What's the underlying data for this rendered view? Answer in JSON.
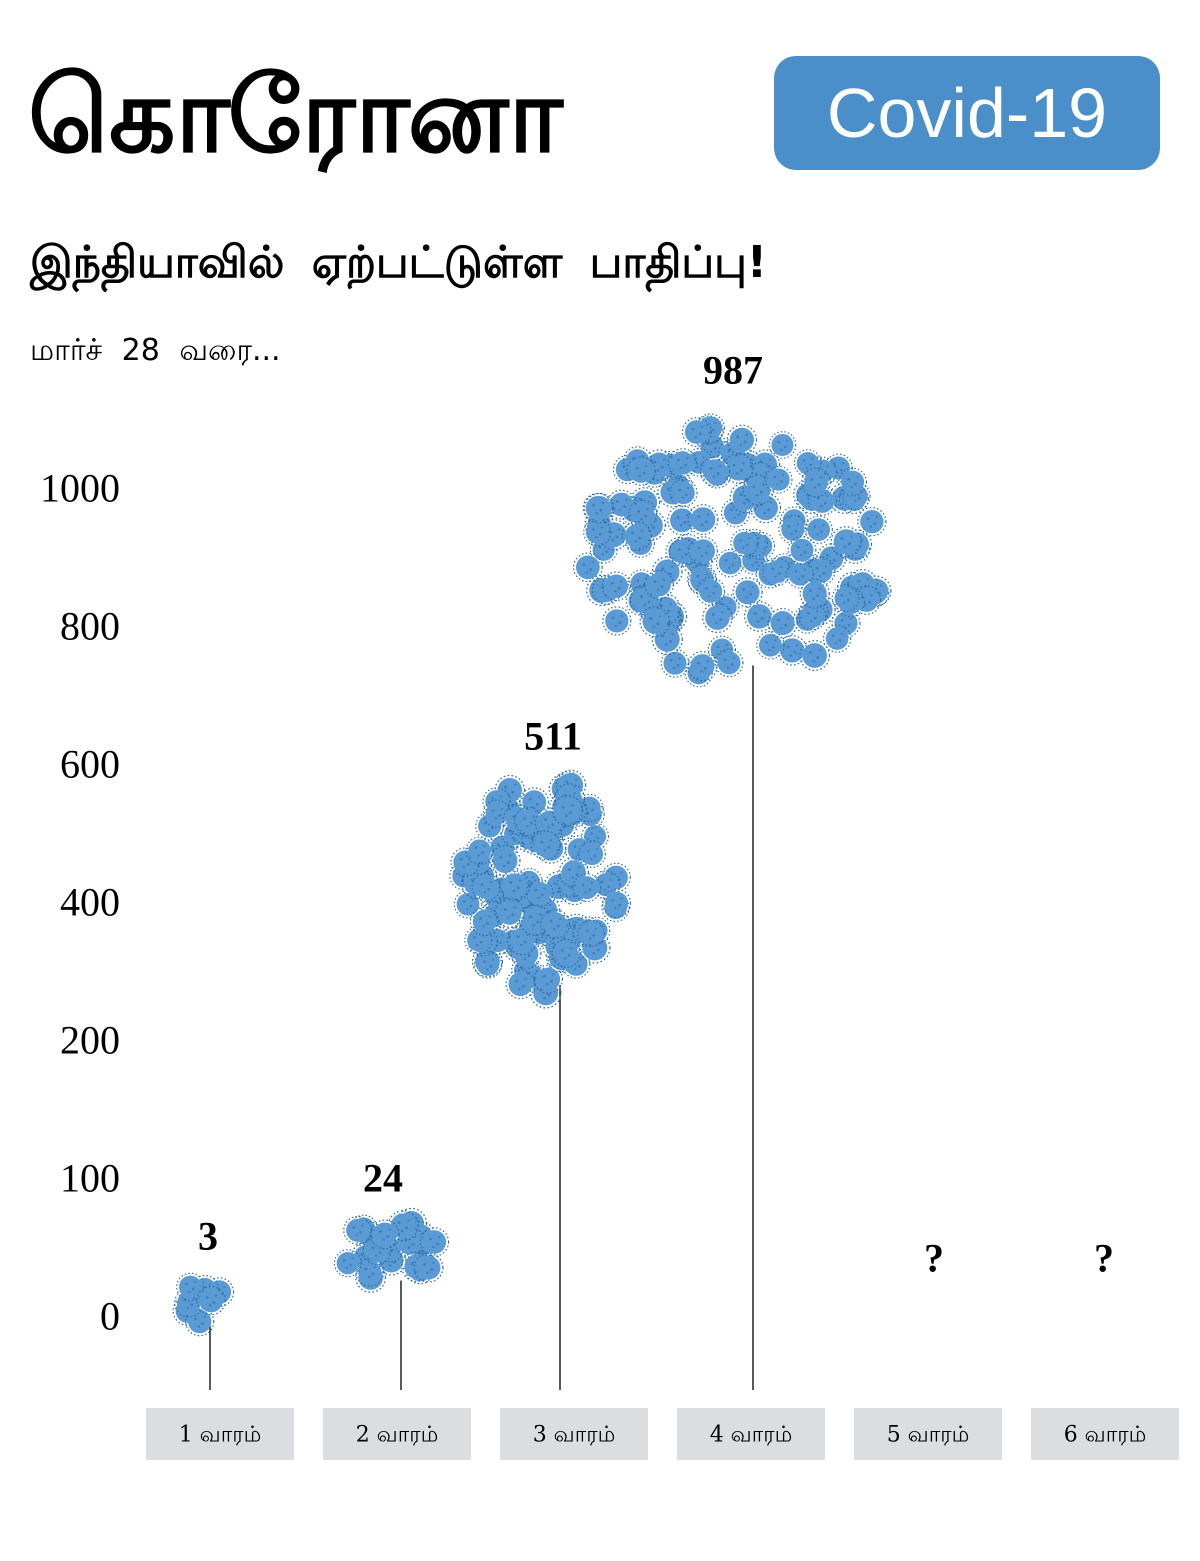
{
  "header": {
    "title": "கொரோனா",
    "badge": "Covid-19",
    "subtitle": "இந்தியாவில் ஏற்பட்டுள்ள பாதிப்பு!",
    "date_note": "மார்ச் 28 வரை..."
  },
  "colors": {
    "accent": "#4a8fca",
    "virus": "#5b9bd5",
    "virus_dot": "#2e6da8",
    "category_box": "#dcdde0"
  },
  "chart_data": {
    "type": "scatter",
    "title": "",
    "xlabel": "",
    "ylabel": "",
    "y_tick_labels": [
      "0",
      "100",
      "200",
      "400",
      "600",
      "800",
      "1000"
    ],
    "categories": [
      "1 வாரம்",
      "2 வாரம்",
      "3 வாரம்",
      "4 வாரம்",
      "5 வாரம்",
      "6 வாரம்"
    ],
    "value_labels": [
      "3",
      "24",
      "511",
      "987",
      "?",
      "?"
    ],
    "values": [
      3,
      24,
      511,
      987,
      null,
      null
    ],
    "grid": false,
    "legend": "none"
  }
}
